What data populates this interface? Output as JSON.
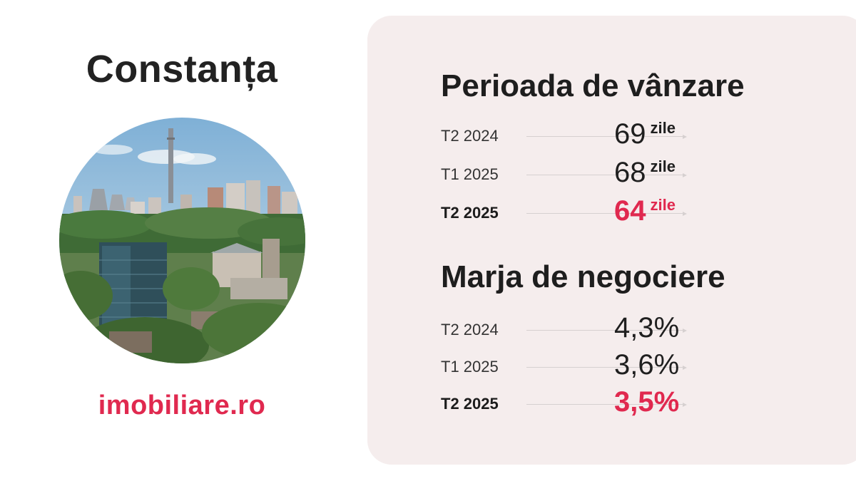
{
  "city": "Constanța",
  "logo": {
    "prefix": "imobiliare",
    "suffix": ".ro"
  },
  "sections": [
    {
      "title": "Perioada de vânzare",
      "rows": [
        {
          "label": "T2 2024",
          "value": "69",
          "unit": "zile"
        },
        {
          "label": "T1 2025",
          "value": "68",
          "unit": "zile"
        },
        {
          "label": "T2 2025",
          "value": "64",
          "unit": "zile"
        }
      ]
    },
    {
      "title": "Marja de negociere",
      "rows": [
        {
          "label": "T2 2024",
          "value": "4,3%"
        },
        {
          "label": "T1 2025",
          "value": "3,6%"
        },
        {
          "label": "T2 2025",
          "value": "3,5%"
        }
      ]
    }
  ],
  "colors": {
    "accent": "#e0294f",
    "panel": "#f5eded",
    "text": "#1f1f1f"
  }
}
